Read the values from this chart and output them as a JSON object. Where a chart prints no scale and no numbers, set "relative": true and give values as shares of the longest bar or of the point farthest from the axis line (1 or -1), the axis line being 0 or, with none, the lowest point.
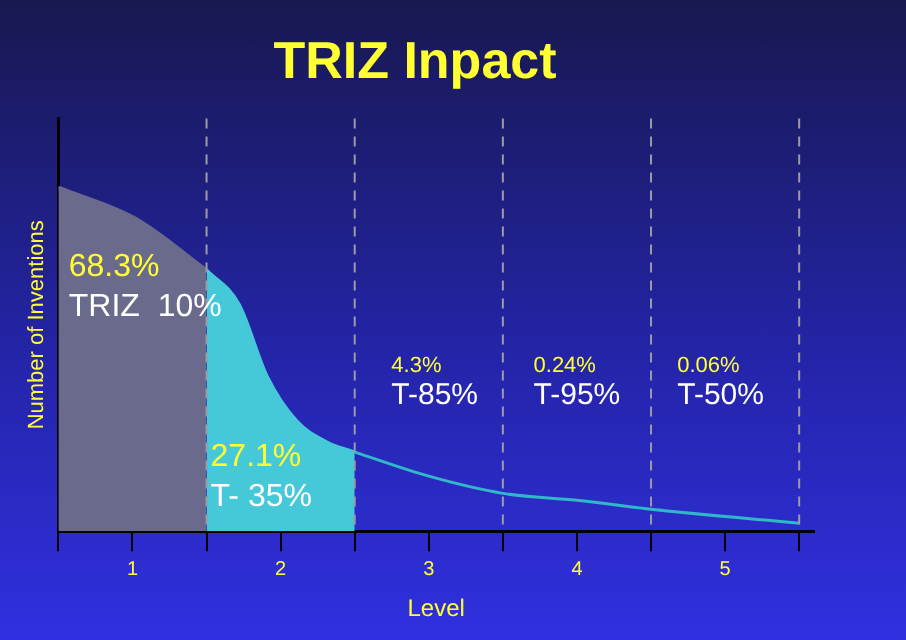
{
  "chart_data": {
    "type": "area",
    "title": "TRIZ Inpact",
    "xlabel": "Level",
    "ylabel": "Number of Inventions",
    "relative": true,
    "grid": false,
    "legend": false,
    "marker": "none",
    "xlim": [
      0,
      5.1
    ],
    "xticks": [
      {
        "value": 0,
        "label": null
      },
      {
        "value": 0.5,
        "label": "1"
      },
      {
        "value": 1,
        "label": null
      },
      {
        "value": 1.5,
        "label": "2"
      },
      {
        "value": 2,
        "label": null
      },
      {
        "value": 2.5,
        "label": "3"
      },
      {
        "value": 3,
        "label": null
      },
      {
        "value": 3.5,
        "label": "4"
      },
      {
        "value": 4,
        "label": null
      },
      {
        "value": 4.5,
        "label": "5"
      },
      {
        "value": 5,
        "label": null
      }
    ],
    "series": [
      {
        "type": "area",
        "color": "#6a6a8c",
        "x": [
          0,
          0.52,
          1
        ],
        "values": [
          1,
          0.91,
          0.76
        ]
      },
      {
        "type": "area",
        "color": "#45c8d8",
        "x": [
          1,
          1.22,
          1.41,
          1.61,
          1.81,
          2
        ],
        "values": [
          0.76,
          0.66,
          0.45,
          0.32,
          0.26,
          0.23
        ]
      },
      {
        "type": "line",
        "color": "#30b8c8",
        "x": [
          2,
          2.5,
          3,
          3.5,
          4,
          5
        ],
        "values": [
          0.23,
          0.16,
          0.11,
          0.09,
          0.064,
          0.023
        ]
      }
    ],
    "ref_lines": [
      {
        "axis": "x",
        "value": 1,
        "color": "#9a9aa8",
        "line_style": "dashed"
      },
      {
        "axis": "x",
        "value": 2,
        "color": "#9a9aa8",
        "line_style": "dashed"
      },
      {
        "axis": "x",
        "value": 3,
        "color": "#9a9aa8",
        "line_style": "dashed"
      },
      {
        "axis": "x",
        "value": 4,
        "color": "#9a9aa8",
        "line_style": "dashed"
      },
      {
        "axis": "x",
        "value": 5,
        "color": "#9a9aa8",
        "line_style": "dashed"
      }
    ],
    "annotations": [
      "68.3%",
      "TRIZ  10%",
      "27.1%",
      "T- 35%",
      "4.3%",
      "T-85%",
      "0.24%",
      "T-95%",
      "0.06%",
      "T-50%"
    ]
  }
}
